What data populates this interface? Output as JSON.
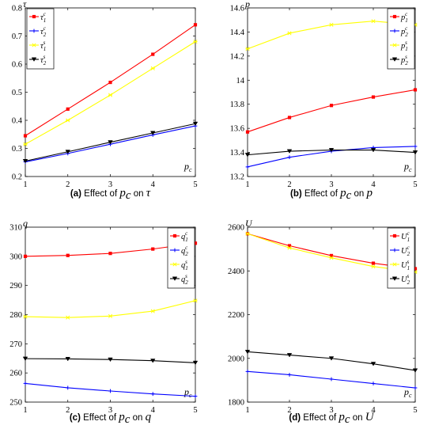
{
  "chart_data": [
    {
      "type": "line",
      "panel": "a",
      "caption": {
        "tag": "(a)",
        "text": "Effect of",
        "var": "p",
        "var_sub": "c",
        "on": "on",
        "target": "τ"
      },
      "ysym": "τ",
      "xsym": "p",
      "xsym_sub": "c",
      "x": [
        1,
        2,
        3,
        4,
        5
      ],
      "xlim": [
        1,
        5
      ],
      "ylim": [
        0.2,
        0.8
      ],
      "xticks": [
        "1",
        "2",
        "3",
        "4",
        "5"
      ],
      "yticks": [
        "0.2",
        "0.3",
        "0.4",
        "0.5",
        "0.6",
        "0.7",
        "0.8"
      ],
      "yticks_v": [
        0.2,
        0.3,
        0.4,
        0.5,
        0.6,
        0.7,
        0.8
      ],
      "legend_pos": "top-left",
      "series": [
        {
          "name": "τ",
          "sup": "c",
          "sub": "1",
          "color": "#ff0000",
          "marker": "square",
          "values": [
            0.345,
            0.44,
            0.535,
            0.635,
            0.74
          ]
        },
        {
          "name": "τ",
          "sup": "c",
          "sub": "2",
          "color": "#0000ff",
          "marker": "plus",
          "values": [
            0.252,
            0.282,
            0.315,
            0.348,
            0.38
          ]
        },
        {
          "name": "τ",
          "sup": "s",
          "sub": "1",
          "color": "#ffff00",
          "marker": "star",
          "values": [
            0.315,
            0.4,
            0.49,
            0.585,
            0.68
          ]
        },
        {
          "name": "τ",
          "sup": "s",
          "sub": "2",
          "color": "#000000",
          "marker": "triangle",
          "values": [
            0.255,
            0.288,
            0.322,
            0.355,
            0.388
          ]
        }
      ]
    },
    {
      "type": "line",
      "panel": "b",
      "caption": {
        "tag": "(b)",
        "text": "Effect of",
        "var": "p",
        "var_sub": "c",
        "on": "on",
        "target": "p"
      },
      "ysym": "p",
      "xsym": "p",
      "xsym_sub": "c",
      "x": [
        1,
        2,
        3,
        4,
        5
      ],
      "xlim": [
        1,
        5
      ],
      "ylim": [
        13.2,
        14.6
      ],
      "xticks": [
        "1",
        "2",
        "3",
        "4",
        "5"
      ],
      "yticks": [
        "13.2",
        "13.4",
        "13.6",
        "13.8",
        "14",
        "14.2",
        "14.4",
        "14.6"
      ],
      "yticks_v": [
        13.2,
        13.4,
        13.6,
        13.8,
        14.0,
        14.2,
        14.4,
        14.6
      ],
      "legend_pos": "top-right",
      "series": [
        {
          "name": "p",
          "sup": "c",
          "sub": "1",
          "color": "#ff0000",
          "marker": "square",
          "values": [
            13.57,
            13.69,
            13.79,
            13.86,
            13.92
          ]
        },
        {
          "name": "p",
          "sup": "c",
          "sub": "2",
          "color": "#0000ff",
          "marker": "plus",
          "values": [
            13.28,
            13.36,
            13.41,
            13.44,
            13.45
          ]
        },
        {
          "name": "p",
          "sup": "s",
          "sub": "1",
          "color": "#ffff00",
          "marker": "star",
          "values": [
            14.26,
            14.39,
            14.46,
            14.49,
            14.46
          ]
        },
        {
          "name": "p",
          "sup": "s",
          "sub": "2",
          "color": "#000000",
          "marker": "triangle",
          "values": [
            13.38,
            13.41,
            13.42,
            13.42,
            13.4
          ]
        }
      ]
    },
    {
      "type": "line",
      "panel": "c",
      "caption": {
        "tag": "(c)",
        "text": "Effect of",
        "var": "p",
        "var_sub": "c",
        "on": "on",
        "target": "q"
      },
      "ysym": "q",
      "xsym": "p",
      "xsym_sub": "c",
      "x": [
        1,
        2,
        3,
        4,
        5
      ],
      "xlim": [
        1,
        5
      ],
      "ylim": [
        250,
        310
      ],
      "xticks": [
        "1",
        "2",
        "3",
        "4",
        "5"
      ],
      "yticks": [
        "250",
        "260",
        "270",
        "280",
        "290",
        "300",
        "310"
      ],
      "yticks_v": [
        250,
        260,
        270,
        280,
        290,
        300,
        310
      ],
      "legend_pos": "top-right",
      "series": [
        {
          "name": "q",
          "sup": "c",
          "sub": "1",
          "color": "#ff0000",
          "marker": "square",
          "values": [
            300.0,
            300.3,
            301.0,
            302.5,
            304.5
          ]
        },
        {
          "name": "q",
          "sup": "c",
          "sub": "2",
          "color": "#0000ff",
          "marker": "plus",
          "values": [
            256.4,
            254.9,
            253.8,
            252.8,
            252.0
          ]
        },
        {
          "name": "q",
          "sup": "s",
          "sub": "1",
          "color": "#ffff00",
          "marker": "star",
          "values": [
            279.3,
            279.0,
            279.5,
            281.2,
            284.8
          ]
        },
        {
          "name": "q",
          "sup": "s",
          "sub": "2",
          "color": "#000000",
          "marker": "triangle",
          "values": [
            264.9,
            264.8,
            264.6,
            264.2,
            263.5
          ]
        }
      ]
    },
    {
      "type": "line",
      "panel": "d",
      "caption": {
        "tag": "(d)",
        "text": "Effect of",
        "var": "p",
        "var_sub": "c",
        "on": "on",
        "target": "U"
      },
      "ysym": "U",
      "xsym": "p",
      "xsym_sub": "c",
      "x": [
        1,
        2,
        3,
        4,
        5
      ],
      "xlim": [
        1,
        5
      ],
      "ylim": [
        1800,
        2600
      ],
      "xticks": [
        "1",
        "2",
        "3",
        "4",
        "5"
      ],
      "yticks": [
        "1800",
        "2000",
        "2200",
        "2400",
        "2600"
      ],
      "yticks_v": [
        1800,
        2000,
        2200,
        2400,
        2600
      ],
      "legend_pos": "top-right",
      "series": [
        {
          "name": "U",
          "sup": "c",
          "sub": "1",
          "color": "#ff0000",
          "marker": "square",
          "values": [
            2570,
            2515,
            2470,
            2435,
            2410
          ]
        },
        {
          "name": "U",
          "sup": "c",
          "sub": "2",
          "color": "#0000ff",
          "marker": "plus",
          "values": [
            1940,
            1925,
            1905,
            1885,
            1865
          ]
        },
        {
          "name": "U",
          "sup": "s",
          "sub": "1",
          "color": "#ffff00",
          "marker": "star",
          "values": [
            2570,
            2505,
            2460,
            2420,
            2395
          ]
        },
        {
          "name": "U",
          "sup": "s",
          "sub": "2",
          "color": "#000000",
          "marker": "triangle",
          "values": [
            2030,
            2015,
            2000,
            1975,
            1945
          ]
        }
      ]
    }
  ]
}
